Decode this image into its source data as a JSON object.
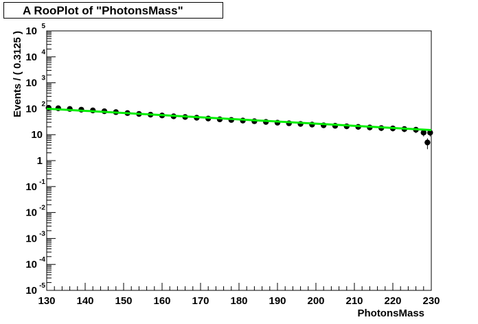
{
  "chart_data": {
    "type": "scatter",
    "title": "A RooPlot of \"PhotonsMass\"",
    "xlabel": "PhotonsMass",
    "ylabel": "Events / ( 0.3125 )",
    "xlim": [
      130,
      230
    ],
    "ylim": [
      1e-05,
      100000.0
    ],
    "yscale": "log",
    "grid": false,
    "x_ticks": [
      "130",
      "140",
      "150",
      "160",
      "170",
      "180",
      "190",
      "200",
      "210",
      "220",
      "230"
    ],
    "y_ticks": [
      {
        "base": "10",
        "exp": "-5"
      },
      {
        "base": "10",
        "exp": "-4"
      },
      {
        "base": "10",
        "exp": "-3"
      },
      {
        "base": "10",
        "exp": "-2"
      },
      {
        "base": "10",
        "exp": "-1"
      },
      {
        "base": "1",
        "exp": ""
      },
      {
        "base": "10",
        "exp": ""
      },
      {
        "base": "10",
        "exp": "2"
      },
      {
        "base": "10",
        "exp": "3"
      },
      {
        "base": "10",
        "exp": "4"
      },
      {
        "base": "10",
        "exp": "5"
      }
    ],
    "series": [
      {
        "kind": "points",
        "x": [
          130.5,
          133,
          136,
          139,
          142,
          145,
          148,
          151,
          154,
          157,
          160,
          163,
          166,
          169,
          172,
          175,
          178,
          181,
          184,
          187,
          190,
          193,
          196,
          199,
          202,
          205,
          208,
          211,
          214,
          217,
          220,
          223,
          226,
          228,
          229,
          229.7
        ],
        "values": [
          108,
          104,
          98,
          92,
          86,
          80,
          74,
          68,
          63,
          59,
          55,
          51,
          48,
          45,
          42,
          39,
          37,
          35,
          33,
          31,
          29,
          27.5,
          26,
          24.5,
          23,
          22,
          21,
          20,
          19,
          18,
          17.5,
          16.5,
          15.5,
          12,
          5,
          12
        ]
      },
      {
        "kind": "fit",
        "color": "#00ee00",
        "x": [
          130,
          230
        ],
        "values": [
          100,
          15
        ]
      }
    ]
  }
}
